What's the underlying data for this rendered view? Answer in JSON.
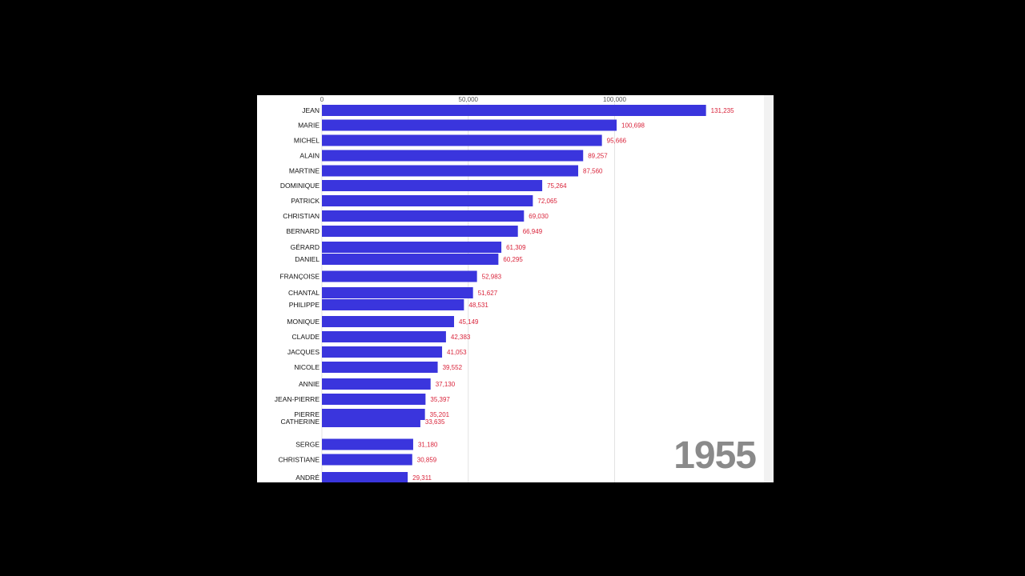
{
  "colors": {
    "bar": "#3a35dd",
    "value_label": "#d9233a",
    "year": "#8a8a8a"
  },
  "year_label": "1955",
  "chart_data": {
    "type": "bar",
    "orientation": "horizontal",
    "title": "",
    "xlabel": "",
    "ylabel": "",
    "xlim": [
      0,
      150000
    ],
    "x_ticks": [
      0,
      50000,
      100000
    ],
    "x_tick_labels": [
      "0",
      "50,000",
      "100,000"
    ],
    "grid": true,
    "categories": [
      "JEAN",
      "MARIE",
      "MICHEL",
      "ALAIN",
      "MARTINE",
      "DOMINIQUE",
      "PATRICK",
      "CHRISTIAN",
      "BERNARD",
      "GÉRARD",
      "DANIEL",
      "FRANÇOISE",
      "CHANTAL",
      "PHILIPPE",
      "MONIQUE",
      "CLAUDE",
      "JACQUES",
      "NICOLE",
      "ANNIE",
      "JEAN-PIERRE",
      "PIERRE",
      "CATHERINE",
      "SERGE",
      "CHRISTIANE",
      "ANDRÉ"
    ],
    "values": [
      131235,
      100698,
      95666,
      89257,
      87560,
      75264,
      72065,
      69030,
      66949,
      61309,
      60295,
      52983,
      51627,
      48531,
      45149,
      42383,
      41053,
      39552,
      37130,
      35397,
      35201,
      33635,
      31180,
      30859,
      29311
    ],
    "value_labels": [
      "131,235",
      "100,698",
      "95,666",
      "89,257",
      "87,560",
      "75,264",
      "72,065",
      "69,030",
      "66,949",
      "61,309",
      "60,295",
      "52,983",
      "51,627",
      "48,531",
      "45,149",
      "42,383",
      "41,053",
      "39,552",
      "37,130",
      "35,397",
      "35,201",
      "33,635",
      "31,180",
      "30,859",
      "29,311"
    ]
  }
}
